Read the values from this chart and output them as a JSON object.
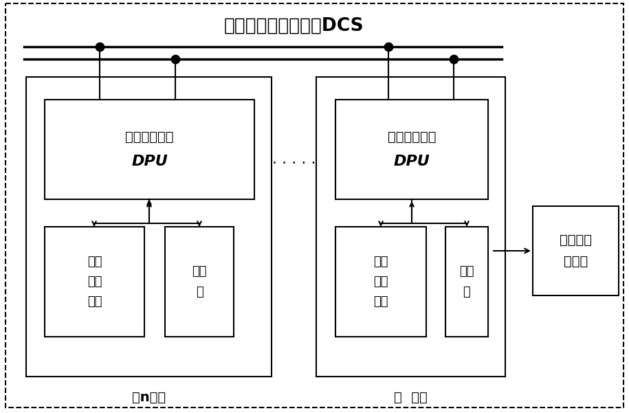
{
  "bg_color": "#ffffff",
  "title": "现场分布式控制系统DCS",
  "left_label": "第n柜体",
  "right_label": "第  柜体",
  "computer_label": "工业控制\n计算机",
  "dpu_label1": "分散处理单元",
  "dpu_label2": "DPU",
  "io_label": "输入\n输出\n模块",
  "comm_label": "通信\n卡",
  "dots": "· · · · ·",
  "line_color": "#000000",
  "figsize": [
    9.15,
    6.01
  ],
  "dpi": 100
}
